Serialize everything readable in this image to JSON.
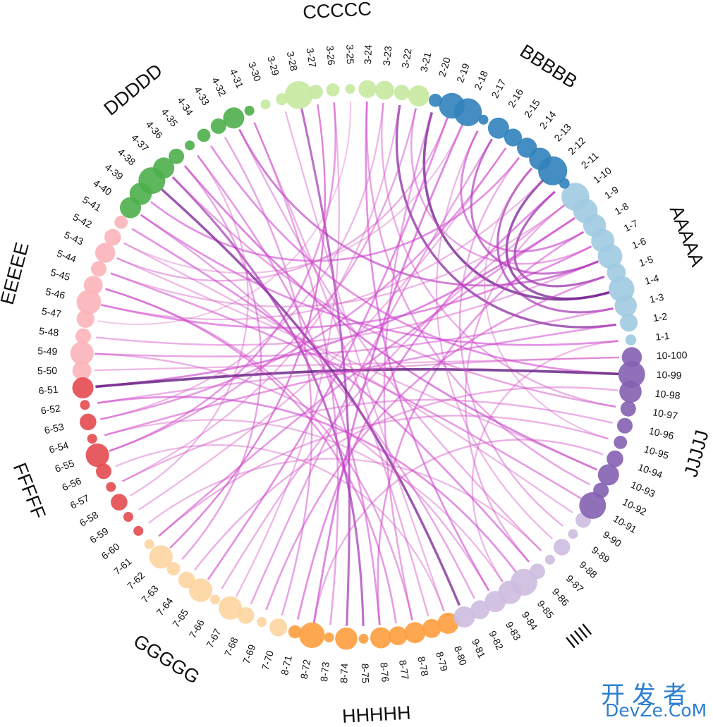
{
  "chart_data": {
    "type": "chord",
    "title": "",
    "groups": [
      {
        "name": "AAAAA",
        "color": "#9ecae1",
        "nodes": [
          "1-1",
          "1-2",
          "1-3",
          "1-4",
          "1-5",
          "1-6",
          "1-7",
          "1-8",
          "1-9",
          "1-10"
        ],
        "sizes": [
          1.2,
          2.4,
          3.2,
          3.8,
          2.6,
          3.6,
          3.4,
          3.3,
          3.6,
          4.2
        ]
      },
      {
        "name": "BBBBB",
        "color": "#3182bd",
        "nodes": [
          "2-11",
          "2-12",
          "2-13",
          "2-14",
          "2-15",
          "2-16",
          "2-17",
          "2-18",
          "2-19",
          "2-20"
        ],
        "sizes": [
          1.1,
          4.4,
          3.2,
          2.8,
          2.4,
          3.0,
          1.0,
          4.2,
          3.8,
          1.6
        ]
      },
      {
        "name": "CCCCC",
        "color": "#c7e9a0",
        "nodes": [
          "3-21",
          "3-22",
          "3-23",
          "3-24",
          "3-25",
          "3-26",
          "3-27",
          "3-28",
          "3-29",
          "3-30"
        ],
        "sizes": [
          3.0,
          2.0,
          2.6,
          2.4,
          1.0,
          1.6,
          1.8,
          4.2,
          1.4,
          1.0
        ]
      },
      {
        "name": "DDDDD",
        "color": "#4daf4a",
        "nodes": [
          "4-31",
          "4-32",
          "4-33",
          "4-34",
          "4-35",
          "4-36",
          "4-37",
          "4-38",
          "4-39",
          "4-40"
        ],
        "sizes": [
          1.0,
          3.0,
          2.0,
          1.6,
          1.0,
          2.0,
          3.0,
          4.0,
          3.2,
          3.0
        ]
      },
      {
        "name": "EEEEE",
        "color": "#fbb4b9",
        "nodes": [
          "5-41",
          "5-42",
          "5-43",
          "5-44",
          "5-45",
          "5-46",
          "5-47",
          "5-48",
          "5-49",
          "5-50"
        ],
        "sizes": [
          1.6,
          2.2,
          2.8,
          2.0,
          2.6,
          3.6,
          2.4,
          2.0,
          3.4,
          2.6
        ]
      },
      {
        "name": "FFFFF",
        "color": "#e34a4f",
        "nodes": [
          "6-51",
          "6-52",
          "6-53",
          "6-54",
          "6-55",
          "6-56",
          "6-57",
          "6-58",
          "6-59",
          "6-60"
        ],
        "sizes": [
          3.0,
          1.0,
          2.2,
          1.0,
          3.4,
          2.0,
          1.0,
          2.2,
          1.0,
          1.0
        ]
      },
      {
        "name": "GGGGG",
        "color": "#fdd49e",
        "nodes": [
          "7-61",
          "7-62",
          "7-63",
          "7-64",
          "7-65",
          "7-66",
          "7-67",
          "7-68",
          "7-69",
          "7-70"
        ],
        "sizes": [
          1.0,
          3.4,
          1.6,
          2.2,
          3.4,
          1.0,
          3.4,
          2.2,
          1.0,
          2.4
        ]
      },
      {
        "name": "HHHHH",
        "color": "#fd9f3e",
        "nodes": [
          "8-71",
          "8-72",
          "8-73",
          "8-74",
          "8-75",
          "8-76",
          "8-77",
          "8-78",
          "8-79",
          "8-80"
        ],
        "sizes": [
          1.6,
          3.8,
          1.0,
          3.2,
          1.0,
          3.0,
          2.6,
          3.0,
          2.6,
          3.0
        ]
      },
      {
        "name": "IIIII",
        "color": "#cdbde0",
        "nodes": [
          "9-81",
          "9-82",
          "9-83",
          "9-84",
          "9-85",
          "9-86",
          "9-87",
          "9-88",
          "9-89",
          "9-90"
        ],
        "sizes": [
          3.0,
          2.6,
          3.0,
          3.4,
          4.0,
          2.0,
          1.0,
          2.2,
          1.0,
          2.0
        ]
      },
      {
        "name": "JJJJJ",
        "color": "#8560b3",
        "nodes": [
          "10-91",
          "10-92",
          "10-93",
          "10-94",
          "10-95",
          "10-96",
          "10-97",
          "10-98",
          "10-99",
          "10-100"
        ],
        "sizes": [
          4.0,
          2.0,
          3.0,
          2.2,
          1.6,
          2.0,
          2.0,
          3.2,
          4.0,
          2.8
        ]
      }
    ],
    "links": [
      {
        "source": "1-4",
        "target": "2-20",
        "weight": 0.9
      },
      {
        "source": "1-4",
        "target": "2-12",
        "weight": 0.85
      },
      {
        "source": "1-5",
        "target": "2-11",
        "weight": 0.75
      },
      {
        "source": "1-3",
        "target": "2-13",
        "weight": 0.7
      },
      {
        "source": "1-2",
        "target": "3-22",
        "weight": 0.8
      },
      {
        "source": "1-6",
        "target": "4-32",
        "weight": 0.6
      },
      {
        "source": "1-7",
        "target": "5-46",
        "weight": 0.5
      },
      {
        "source": "1-9",
        "target": "6-51",
        "weight": 0.55
      },
      {
        "source": "1-8",
        "target": "8-76",
        "weight": 0.45
      },
      {
        "source": "1-10",
        "target": "7-66",
        "weight": 0.35
      },
      {
        "source": "1-1",
        "target": "9-84",
        "weight": 0.3
      },
      {
        "source": "1-3",
        "target": "5-49",
        "weight": 0.4
      },
      {
        "source": "2-14",
        "target": "4-39",
        "weight": 0.5
      },
      {
        "source": "2-15",
        "target": "6-53",
        "weight": 0.45
      },
      {
        "source": "2-16",
        "target": "7-68",
        "weight": 0.4
      },
      {
        "source": "2-18",
        "target": "8-72",
        "weight": 0.55
      },
      {
        "source": "2-19",
        "target": "5-43",
        "weight": 0.35
      },
      {
        "source": "2-17",
        "target": "9-88",
        "weight": 0.3
      },
      {
        "source": "2-13",
        "target": "10-95",
        "weight": 0.25
      },
      {
        "source": "3-28",
        "target": "8-74",
        "weight": 0.7
      },
      {
        "source": "3-27",
        "target": "7-62",
        "weight": 0.4
      },
      {
        "source": "3-24",
        "target": "9-83",
        "weight": 0.5
      },
      {
        "source": "3-26",
        "target": "6-55",
        "weight": 0.45
      },
      {
        "source": "3-23",
        "target": "10-97",
        "weight": 0.35
      },
      {
        "source": "3-25",
        "target": "5-47",
        "weight": 0.2
      },
      {
        "source": "3-21",
        "target": "1-7",
        "weight": 0.4
      },
      {
        "source": "4-38",
        "target": "9-81",
        "weight": 0.85
      },
      {
        "source": "4-37",
        "target": "8-75",
        "weight": 0.7
      },
      {
        "source": "4-36",
        "target": "10-93",
        "weight": 0.55
      },
      {
        "source": "4-34",
        "target": "10-99",
        "weight": 0.5
      },
      {
        "source": "4-33",
        "target": "7-70",
        "weight": 0.4
      },
      {
        "source": "4-35",
        "target": "6-58",
        "weight": 0.3
      },
      {
        "source": "4-31",
        "target": "8-79",
        "weight": 0.35
      },
      {
        "source": "4-40",
        "target": "1-1",
        "weight": 0.5
      },
      {
        "source": "5-41",
        "target": "9-86",
        "weight": 0.5
      },
      {
        "source": "5-44",
        "target": "10-91",
        "weight": 0.45
      },
      {
        "source": "5-45",
        "target": "8-78",
        "weight": 0.4
      },
      {
        "source": "5-48",
        "target": "1-6",
        "weight": 0.35
      },
      {
        "source": "5-50",
        "target": "10-100",
        "weight": 0.3
      },
      {
        "source": "5-42",
        "target": "2-18",
        "weight": 0.25
      },
      {
        "source": "6-51",
        "target": "10-99",
        "weight": 0.95
      },
      {
        "source": "6-52",
        "target": "9-85",
        "weight": 0.5
      },
      {
        "source": "6-54",
        "target": "1-2",
        "weight": 0.45
      },
      {
        "source": "6-55",
        "target": "3-21",
        "weight": 0.4
      },
      {
        "source": "6-56",
        "target": "8-80",
        "weight": 0.3
      },
      {
        "source": "6-57",
        "target": "10-96",
        "weight": 0.35
      },
      {
        "source": "6-59",
        "target": "2-15",
        "weight": 0.3
      },
      {
        "source": "7-61",
        "target": "1-9",
        "weight": 0.45
      },
      {
        "source": "7-63",
        "target": "4-36",
        "weight": 0.4
      },
      {
        "source": "7-64",
        "target": "10-98",
        "weight": 0.35
      },
      {
        "source": "7-65",
        "target": "2-19",
        "weight": 0.5
      },
      {
        "source": "7-67",
        "target": "3-26",
        "weight": 0.3
      },
      {
        "source": "7-69",
        "target": "1-5",
        "weight": 0.45
      },
      {
        "source": "8-71",
        "target": "2-11",
        "weight": 0.5
      },
      {
        "source": "8-73",
        "target": "4-31",
        "weight": 0.4
      },
      {
        "source": "8-77",
        "target": "5-45",
        "weight": 0.45
      },
      {
        "source": "8-80",
        "target": "3-29",
        "weight": 0.3
      },
      {
        "source": "8-72",
        "target": "10-94",
        "weight": 0.35
      },
      {
        "source": "9-82",
        "target": "4-40",
        "weight": 0.4
      },
      {
        "source": "9-87",
        "target": "6-60",
        "weight": 0.3
      },
      {
        "source": "9-89",
        "target": "2-14",
        "weight": 0.35
      },
      {
        "source": "9-90",
        "target": "5-42",
        "weight": 0.3
      },
      {
        "source": "10-92",
        "target": "3-24",
        "weight": 0.4
      },
      {
        "source": "10-95",
        "target": "7-61",
        "weight": 0.35
      },
      {
        "source": "10-97",
        "target": "4-37",
        "weight": 0.4
      },
      {
        "source": "10-100",
        "target": "6-52",
        "weight": 0.35
      },
      {
        "source": "1-6",
        "target": "2-16",
        "weight": 0.65
      },
      {
        "source": "1-8",
        "target": "2-17",
        "weight": 0.55
      },
      {
        "source": "1-10",
        "target": "5-44",
        "weight": 0.3
      },
      {
        "source": "3-22",
        "target": "6-57",
        "weight": 0.3
      },
      {
        "source": "4-32",
        "target": "9-87",
        "weight": 0.35
      },
      {
        "source": "5-46",
        "target": "2-12",
        "weight": 0.3
      },
      {
        "source": "5-49",
        "target": "9-83",
        "weight": 0.35
      },
      {
        "source": "7-62",
        "target": "3-27",
        "weight": 0.3
      },
      {
        "source": "8-76",
        "target": "4-35",
        "weight": 0.45
      },
      {
        "source": "8-78",
        "target": "2-20",
        "weight": 0.4
      },
      {
        "source": "9-84",
        "target": "6-54",
        "weight": 0.3
      },
      {
        "source": "9-86",
        "target": "1-10",
        "weight": 0.35
      },
      {
        "source": "10-93",
        "target": "5-43",
        "weight": 0.3
      },
      {
        "source": "6-53",
        "target": "3-23",
        "weight": 0.3
      }
    ]
  },
  "watermark": {
    "line1": "开发者",
    "line2": "DevZe.CoM"
  }
}
